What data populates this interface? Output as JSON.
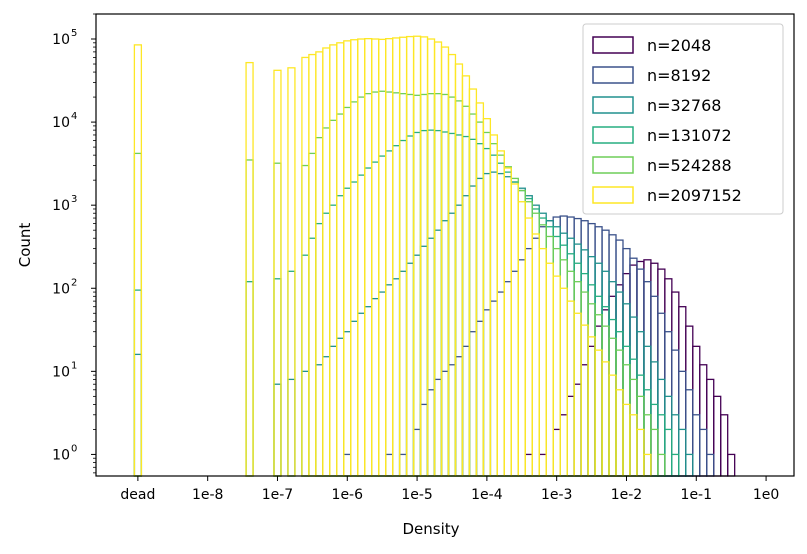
{
  "chart_data": {
    "type": "histogram",
    "title": "",
    "xlabel": "Density",
    "ylabel": "Count",
    "x_scale": "log10 (with 'dead' bin at left)",
    "y_scale": "log",
    "ylim": [
      0.55,
      200000
    ],
    "x_ticks": [
      {
        "label": "dead",
        "log10": -9
      },
      {
        "label": "1e-8",
        "log10": -8
      },
      {
        "label": "1e-7",
        "log10": -7
      },
      {
        "label": "1e-6",
        "log10": -6
      },
      {
        "label": "1e-5",
        "log10": -5
      },
      {
        "label": "1e-4",
        "log10": -4
      },
      {
        "label": "1e-3",
        "log10": -3
      },
      {
        "label": "1e-2",
        "log10": -2
      },
      {
        "label": "1e-1",
        "log10": -1
      },
      {
        "label": "1e0",
        "log10": 0
      }
    ],
    "y_ticks": [
      {
        "label": "10^0",
        "base": "10",
        "exp": "0",
        "value": 1
      },
      {
        "label": "10^1",
        "base": "10",
        "exp": "1",
        "value": 10
      },
      {
        "label": "10^2",
        "base": "10",
        "exp": "2",
        "value": 100
      },
      {
        "label": "10^3",
        "base": "10",
        "exp": "3",
        "value": 1000
      },
      {
        "label": "10^4",
        "base": "10",
        "exp": "4",
        "value": 10000
      },
      {
        "label": "10^5",
        "base": "10",
        "exp": "5",
        "value": 100000
      }
    ],
    "legend_position": "upper-right",
    "series": [
      {
        "name": "n=2048",
        "color": "#440154",
        "bins": [
          [
            -3.4,
            1
          ],
          [
            -3.2,
            1
          ],
          [
            -3.0,
            2
          ],
          [
            -2.9,
            3
          ],
          [
            -2.8,
            5
          ],
          [
            -2.7,
            7
          ],
          [
            -2.6,
            12
          ],
          [
            -2.5,
            20
          ],
          [
            -2.4,
            35
          ],
          [
            -2.3,
            55
          ],
          [
            -2.2,
            80
          ],
          [
            -2.1,
            110
          ],
          [
            -2.0,
            150
          ],
          [
            -1.9,
            190
          ],
          [
            -1.8,
            210
          ],
          [
            -1.7,
            220
          ],
          [
            -1.6,
            200
          ],
          [
            -1.5,
            170
          ],
          [
            -1.4,
            130
          ],
          [
            -1.3,
            90
          ],
          [
            -1.2,
            60
          ],
          [
            -1.1,
            35
          ],
          [
            -1.0,
            20
          ],
          [
            -0.9,
            12
          ],
          [
            -0.8,
            8
          ],
          [
            -0.7,
            5
          ],
          [
            -0.6,
            3
          ],
          [
            -0.5,
            1
          ]
        ]
      },
      {
        "name": "n=8192",
        "color": "#3b528b",
        "bins": [
          [
            -6.0,
            1
          ],
          [
            -5.4,
            1
          ],
          [
            -5.2,
            1
          ],
          [
            -5.0,
            2
          ],
          [
            -4.9,
            4
          ],
          [
            -4.8,
            6
          ],
          [
            -4.7,
            8
          ],
          [
            -4.6,
            10
          ],
          [
            -4.5,
            12
          ],
          [
            -4.4,
            15
          ],
          [
            -4.3,
            20
          ],
          [
            -4.2,
            30
          ],
          [
            -4.1,
            40
          ],
          [
            -4.0,
            55
          ],
          [
            -3.9,
            70
          ],
          [
            -3.8,
            90
          ],
          [
            -3.7,
            120
          ],
          [
            -3.6,
            160
          ],
          [
            -3.5,
            220
          ],
          [
            -3.4,
            300
          ],
          [
            -3.3,
            400
          ],
          [
            -3.2,
            550
          ],
          [
            -3.1,
            650
          ],
          [
            -3.0,
            720
          ],
          [
            -2.9,
            740
          ],
          [
            -2.8,
            720
          ],
          [
            -2.7,
            690
          ],
          [
            -2.6,
            650
          ],
          [
            -2.5,
            600
          ],
          [
            -2.4,
            550
          ],
          [
            -2.3,
            500
          ],
          [
            -2.2,
            440
          ],
          [
            -2.1,
            380
          ],
          [
            -2.0,
            300
          ],
          [
            -1.9,
            230
          ],
          [
            -1.8,
            170
          ],
          [
            -1.7,
            120
          ],
          [
            -1.6,
            80
          ],
          [
            -1.5,
            50
          ],
          [
            -1.4,
            30
          ],
          [
            -1.3,
            18
          ],
          [
            -1.2,
            10
          ],
          [
            -1.1,
            6
          ],
          [
            -1.0,
            3
          ],
          [
            -0.9,
            2
          ],
          [
            -0.8,
            1
          ]
        ]
      },
      {
        "name": "n=32768",
        "color": "#21908d",
        "bins": [
          [
            -9.0,
            16
          ],
          [
            -7.0,
            7
          ],
          [
            -6.8,
            8
          ],
          [
            -6.6,
            10
          ],
          [
            -6.4,
            12
          ],
          [
            -6.3,
            15
          ],
          [
            -6.2,
            20
          ],
          [
            -6.1,
            25
          ],
          [
            -6.0,
            30
          ],
          [
            -5.9,
            40
          ],
          [
            -5.8,
            50
          ],
          [
            -5.7,
            60
          ],
          [
            -5.6,
            75
          ],
          [
            -5.5,
            90
          ],
          [
            -5.4,
            110
          ],
          [
            -5.3,
            130
          ],
          [
            -5.2,
            160
          ],
          [
            -5.1,
            200
          ],
          [
            -5.0,
            250
          ],
          [
            -4.9,
            320
          ],
          [
            -4.8,
            400
          ],
          [
            -4.7,
            500
          ],
          [
            -4.6,
            650
          ],
          [
            -4.5,
            800
          ],
          [
            -4.4,
            1000
          ],
          [
            -4.3,
            1300
          ],
          [
            -4.2,
            1700
          ],
          [
            -4.1,
            2100
          ],
          [
            -4.0,
            2400
          ],
          [
            -3.9,
            2500
          ],
          [
            -3.8,
            2400
          ],
          [
            -3.7,
            2200
          ],
          [
            -3.6,
            1900
          ],
          [
            -3.5,
            1600
          ],
          [
            -3.4,
            1300
          ],
          [
            -3.3,
            1000
          ],
          [
            -3.2,
            800
          ],
          [
            -3.1,
            650
          ],
          [
            -3.0,
            550
          ],
          [
            -2.9,
            460
          ],
          [
            -2.8,
            400
          ],
          [
            -2.7,
            340
          ],
          [
            -2.6,
            290
          ],
          [
            -2.5,
            240
          ],
          [
            -2.4,
            200
          ],
          [
            -2.3,
            160
          ],
          [
            -2.2,
            120
          ],
          [
            -2.1,
            90
          ],
          [
            -2.0,
            65
          ],
          [
            -1.9,
            45
          ],
          [
            -1.8,
            30
          ],
          [
            -1.7,
            20
          ],
          [
            -1.6,
            13
          ],
          [
            -1.5,
            8
          ],
          [
            -1.4,
            5
          ],
          [
            -1.3,
            3
          ],
          [
            -1.2,
            2
          ],
          [
            -1.1,
            1
          ]
        ]
      },
      {
        "name": "n=131072",
        "color": "#27ad81",
        "bins": [
          [
            -9.0,
            95
          ],
          [
            -7.4,
            120
          ],
          [
            -7.0,
            130
          ],
          [
            -6.8,
            160
          ],
          [
            -6.6,
            250
          ],
          [
            -6.5,
            400
          ],
          [
            -6.4,
            600
          ],
          [
            -6.3,
            800
          ],
          [
            -6.2,
            1000
          ],
          [
            -6.1,
            1300
          ],
          [
            -6.0,
            1600
          ],
          [
            -5.9,
            1900
          ],
          [
            -5.8,
            2300
          ],
          [
            -5.7,
            2800
          ],
          [
            -5.6,
            3300
          ],
          [
            -5.5,
            3900
          ],
          [
            -5.4,
            4500
          ],
          [
            -5.3,
            5200
          ],
          [
            -5.2,
            6000
          ],
          [
            -5.1,
            6800
          ],
          [
            -5.0,
            7500
          ],
          [
            -4.9,
            7900
          ],
          [
            -4.8,
            8000
          ],
          [
            -4.7,
            7900
          ],
          [
            -4.6,
            7600
          ],
          [
            -4.5,
            7300
          ],
          [
            -4.4,
            7000
          ],
          [
            -4.3,
            6700
          ],
          [
            -4.2,
            6200
          ],
          [
            -4.1,
            5500
          ],
          [
            -4.0,
            4800
          ],
          [
            -3.9,
            4000
          ],
          [
            -3.8,
            3200
          ],
          [
            -3.7,
            2500
          ],
          [
            -3.6,
            1900
          ],
          [
            -3.5,
            1500
          ],
          [
            -3.4,
            1200
          ],
          [
            -3.3,
            900
          ],
          [
            -3.2,
            700
          ],
          [
            -3.1,
            550
          ],
          [
            -3.0,
            420
          ],
          [
            -2.9,
            330
          ],
          [
            -2.8,
            260
          ],
          [
            -2.7,
            200
          ],
          [
            -2.6,
            150
          ],
          [
            -2.5,
            110
          ],
          [
            -2.4,
            80
          ],
          [
            -2.3,
            60
          ],
          [
            -2.2,
            42
          ],
          [
            -2.1,
            30
          ],
          [
            -2.0,
            20
          ],
          [
            -1.9,
            14
          ],
          [
            -1.8,
            9
          ],
          [
            -1.7,
            6
          ],
          [
            -1.6,
            4
          ],
          [
            -1.5,
            3
          ],
          [
            -1.4,
            2
          ],
          [
            -1.3,
            1
          ]
        ]
      },
      {
        "name": "n=524288",
        "color": "#6ece58",
        "bins": [
          [
            -9.0,
            4200
          ],
          [
            -7.4,
            3500
          ],
          [
            -7.0,
            3200
          ],
          [
            -6.6,
            3000
          ],
          [
            -6.5,
            4200
          ],
          [
            -6.4,
            6500
          ],
          [
            -6.3,
            8500
          ],
          [
            -6.2,
            10500
          ],
          [
            -6.1,
            12500
          ],
          [
            -6.0,
            15000
          ],
          [
            -5.9,
            17500
          ],
          [
            -5.8,
            20000
          ],
          [
            -5.7,
            22000
          ],
          [
            -5.6,
            23000
          ],
          [
            -5.5,
            23500
          ],
          [
            -5.4,
            23000
          ],
          [
            -5.3,
            22500
          ],
          [
            -5.2,
            22000
          ],
          [
            -5.1,
            21500
          ],
          [
            -5.0,
            21000
          ],
          [
            -4.9,
            21500
          ],
          [
            -4.8,
            22000
          ],
          [
            -4.7,
            22000
          ],
          [
            -4.6,
            21500
          ],
          [
            -4.5,
            20000
          ],
          [
            -4.4,
            18000
          ],
          [
            -4.3,
            15500
          ],
          [
            -4.2,
            12500
          ],
          [
            -4.1,
            10000
          ],
          [
            -4.0,
            7500
          ],
          [
            -3.9,
            5500
          ],
          [
            -3.8,
            4000
          ],
          [
            -3.7,
            2900
          ],
          [
            -3.6,
            2100
          ],
          [
            -3.5,
            1500
          ],
          [
            -3.4,
            1100
          ],
          [
            -3.3,
            800
          ],
          [
            -3.2,
            580
          ],
          [
            -3.1,
            420
          ],
          [
            -3.0,
            300
          ],
          [
            -2.9,
            220
          ],
          [
            -2.8,
            160
          ],
          [
            -2.7,
            120
          ],
          [
            -2.6,
            90
          ],
          [
            -2.5,
            65
          ],
          [
            -2.4,
            48
          ],
          [
            -2.3,
            35
          ],
          [
            -2.2,
            25
          ],
          [
            -2.1,
            18
          ],
          [
            -2.0,
            12
          ],
          [
            -1.9,
            8
          ],
          [
            -1.8,
            5
          ],
          [
            -1.7,
            3
          ],
          [
            -1.6,
            2
          ],
          [
            -1.5,
            1
          ]
        ]
      },
      {
        "name": "n=2097152",
        "color": "#fde725",
        "bins": [
          [
            -9.0,
            85000
          ],
          [
            -7.4,
            52000
          ],
          [
            -7.0,
            42000
          ],
          [
            -6.8,
            45000
          ],
          [
            -6.6,
            60000
          ],
          [
            -6.5,
            65000
          ],
          [
            -6.4,
            70000
          ],
          [
            -6.3,
            78000
          ],
          [
            -6.2,
            85000
          ],
          [
            -6.1,
            90000
          ],
          [
            -6.0,
            95000
          ],
          [
            -5.9,
            98000
          ],
          [
            -5.8,
            100000
          ],
          [
            -5.7,
            101000
          ],
          [
            -5.6,
            100000
          ],
          [
            -5.5,
            99000
          ],
          [
            -5.4,
            101000
          ],
          [
            -5.3,
            103000
          ],
          [
            -5.2,
            105000
          ],
          [
            -5.1,
            107000
          ],
          [
            -5.0,
            108000
          ],
          [
            -4.9,
            106000
          ],
          [
            -4.8,
            100000
          ],
          [
            -4.7,
            92000
          ],
          [
            -4.6,
            80000
          ],
          [
            -4.5,
            65000
          ],
          [
            -4.4,
            50000
          ],
          [
            -4.3,
            36000
          ],
          [
            -4.2,
            25000
          ],
          [
            -4.1,
            17000
          ],
          [
            -4.0,
            11000
          ],
          [
            -3.9,
            7000
          ],
          [
            -3.8,
            4500
          ],
          [
            -3.7,
            2800
          ],
          [
            -3.6,
            1800
          ],
          [
            -3.5,
            1100
          ],
          [
            -3.4,
            700
          ],
          [
            -3.3,
            450
          ],
          [
            -3.2,
            300
          ],
          [
            -3.1,
            200
          ],
          [
            -3.0,
            140
          ],
          [
            -2.9,
            100
          ],
          [
            -2.8,
            70
          ],
          [
            -2.7,
            50
          ],
          [
            -2.6,
            36
          ],
          [
            -2.5,
            26
          ],
          [
            -2.4,
            18
          ],
          [
            -2.3,
            13
          ],
          [
            -2.2,
            9
          ],
          [
            -2.1,
            6
          ],
          [
            -2.0,
            4
          ],
          [
            -1.9,
            3
          ],
          [
            -1.8,
            2
          ],
          [
            -1.7,
            1
          ]
        ]
      }
    ]
  }
}
